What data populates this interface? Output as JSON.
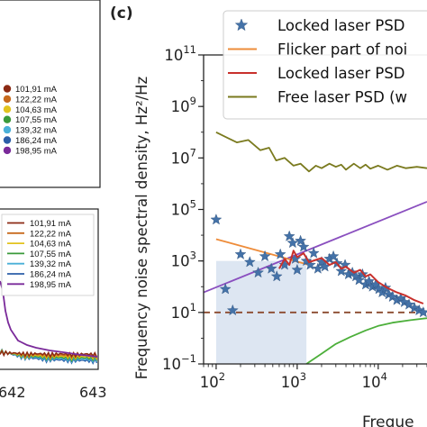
{
  "colors": {
    "locked_psd": "#4472a8",
    "flicker": "#ee8c3a",
    "locked_smooth": "#c8302c",
    "free": "#7a7a1e",
    "white_noise": "#8b4a2e",
    "trend": "#8a4fbf",
    "green": "#4caf3a",
    "shade": "#dde6f2"
  },
  "panel_label": "(c)",
  "left_panels": {
    "top_legend": [
      {
        "label": "101,91 mA",
        "color": "#8b2a14"
      },
      {
        "label": "122,22 mA",
        "color": "#c86a1e"
      },
      {
        "label": "104,63 mA",
        "color": "#e2c31e"
      },
      {
        "label": "107,55 mA",
        "color": "#3a9a3a"
      },
      {
        "label": "139,32 mA",
        "color": "#4ab0d8"
      },
      {
        "label": "186,24 mA",
        "color": "#2c5ea8"
      },
      {
        "label": "198,95 mA",
        "color": "#7a2a9a"
      }
    ],
    "bottom_legend": [
      {
        "label": "101,91 mA",
        "color": "#8b2a14"
      },
      {
        "label": "122,22 mA",
        "color": "#c86a1e"
      },
      {
        "label": "104,63 mA",
        "color": "#e2c31e"
      },
      {
        "label": "107,55 mA",
        "color": "#3a9a3a"
      },
      {
        "label": "139,32 mA",
        "color": "#4ab0d8"
      },
      {
        "label": "186,24 mA",
        "color": "#2c5ea8"
      },
      {
        "label": "198,95 mA",
        "color": "#7a2a9a"
      }
    ],
    "x_ticks": [
      "642",
      "643"
    ]
  },
  "chart_data": {
    "type": "line",
    "panel": "(c)",
    "xlabel": "Freque",
    "ylabel": "Frequency noise spectral density, Hz²/Hz",
    "x_scale": "log",
    "y_scale": "log",
    "xlim": [
      70,
      40000
    ],
    "ylim": [
      0.1,
      100000000000
    ],
    "x_ticks": [
      {
        "value": 100,
        "label": "10",
        "exp": "2"
      },
      {
        "value": 1000,
        "label": "10",
        "exp": "3"
      },
      {
        "value": 10000,
        "label": "10",
        "exp": "4"
      }
    ],
    "y_ticks": [
      {
        "value": 0.1,
        "label": "10",
        "exp": "−1"
      },
      {
        "value": 10,
        "label": "10",
        "exp": "1"
      },
      {
        "value": 1000,
        "label": "10",
        "exp": "3"
      },
      {
        "value": 100000,
        "label": "10",
        "exp": "5"
      },
      {
        "value": 10000000,
        "label": "10",
        "exp": "7"
      },
      {
        "value": 1000000000,
        "label": "10",
        "exp": "9"
      },
      {
        "value": 100000000000,
        "label": "10",
        "exp": "11"
      }
    ],
    "legend": [
      {
        "label": "Locked laser PSD",
        "kind": "star",
        "series": "locked_psd"
      },
      {
        "label": "Flicker part of noi",
        "kind": "line",
        "series": "flicker"
      },
      {
        "label": "Locked laser PSD",
        "kind": "line",
        "series": "locked_smooth"
      },
      {
        "label": "Free laser PSD (w",
        "kind": "line",
        "series": "free"
      }
    ],
    "shaded_region": {
      "x": [
        100,
        1300
      ],
      "y": [
        0.1,
        1000
      ]
    },
    "series": [
      {
        "id": "locked_psd",
        "kind": "scatter",
        "points": [
          [
            100,
            40000
          ],
          [
            130,
            80
          ],
          [
            160,
            12
          ],
          [
            200,
            1800
          ],
          [
            260,
            900
          ],
          [
            330,
            350
          ],
          [
            400,
            1500
          ],
          [
            480,
            500
          ],
          [
            560,
            250
          ],
          [
            620,
            1800
          ],
          [
            700,
            700
          ],
          [
            800,
            9000
          ],
          [
            880,
            5000
          ],
          [
            950,
            1200
          ],
          [
            1000,
            450
          ],
          [
            1100,
            6000
          ],
          [
            1200,
            3500
          ],
          [
            1300,
            1000
          ],
          [
            1450,
            700
          ],
          [
            1600,
            2000
          ],
          [
            1800,
            500
          ],
          [
            2000,
            900
          ],
          [
            2200,
            600
          ],
          [
            2500,
            1200
          ],
          [
            2800,
            1500
          ],
          [
            3100,
            800
          ],
          [
            3500,
            400
          ],
          [
            3900,
            700
          ],
          [
            4300,
            300
          ],
          [
            4800,
            350
          ],
          [
            5300,
            250
          ],
          [
            5800,
            180
          ],
          [
            6400,
            300
          ],
          [
            7000,
            120
          ],
          [
            7700,
            160
          ],
          [
            8500,
            100
          ],
          [
            9300,
            120
          ],
          [
            10200,
            80
          ],
          [
            11200,
            60
          ],
          [
            12300,
            90
          ],
          [
            13500,
            50
          ],
          [
            15000,
            40
          ],
          [
            17000,
            30
          ],
          [
            19000,
            35
          ],
          [
            21000,
            25
          ],
          [
            24000,
            20
          ],
          [
            28000,
            15
          ],
          [
            32000,
            12
          ],
          [
            36000,
            10
          ]
        ]
      },
      {
        "id": "flicker",
        "kind": "line",
        "points": [
          [
            100,
            7000
          ],
          [
            600,
            1500
          ],
          [
            1400,
            700
          ]
        ]
      },
      {
        "id": "locked_smooth",
        "kind": "line",
        "points": [
          [
            600,
            500
          ],
          [
            700,
            1200
          ],
          [
            800,
            700
          ],
          [
            900,
            2500
          ],
          [
            1000,
            1400
          ],
          [
            1200,
            2000
          ],
          [
            1400,
            900
          ],
          [
            1700,
            1100
          ],
          [
            2000,
            1300
          ],
          [
            2500,
            700
          ],
          [
            3000,
            900
          ],
          [
            3500,
            500
          ],
          [
            4000,
            600
          ],
          [
            5000,
            350
          ],
          [
            6000,
            450
          ],
          [
            7000,
            250
          ],
          [
            8000,
            300
          ],
          [
            10000,
            150
          ],
          [
            13000,
            90
          ],
          [
            17000,
            60
          ],
          [
            22000,
            45
          ],
          [
            28000,
            30
          ],
          [
            36000,
            22
          ]
        ]
      },
      {
        "id": "free",
        "kind": "line",
        "points": [
          [
            100,
            100000000
          ],
          [
            180,
            40000000
          ],
          [
            250,
            50000000
          ],
          [
            350,
            20000000
          ],
          [
            450,
            25000000
          ],
          [
            550,
            8000000
          ],
          [
            700,
            10000000
          ],
          [
            900,
            5000000
          ],
          [
            1100,
            6000000
          ],
          [
            1400,
            3000000
          ],
          [
            1700,
            5000000
          ],
          [
            2000,
            4000000
          ],
          [
            2500,
            6000000
          ],
          [
            3000,
            4500000
          ],
          [
            3500,
            5500000
          ],
          [
            4000,
            3500000
          ],
          [
            5000,
            6000000
          ],
          [
            6000,
            4000000
          ],
          [
            7000,
            5500000
          ],
          [
            8000,
            3800000
          ],
          [
            10000,
            5000000
          ],
          [
            13000,
            3500000
          ],
          [
            17000,
            5000000
          ],
          [
            22000,
            4000000
          ],
          [
            30000,
            4500000
          ],
          [
            40000,
            4000000
          ]
        ]
      },
      {
        "id": "white_noise",
        "kind": "dashed",
        "points": [
          [
            70,
            10
          ],
          [
            40000,
            10
          ]
        ]
      },
      {
        "id": "trend",
        "kind": "line",
        "points": [
          [
            70,
            60
          ],
          [
            40000,
            200000
          ]
        ]
      },
      {
        "id": "green",
        "kind": "line",
        "points": [
          [
            1300,
            0.1
          ],
          [
            2000,
            0.25
          ],
          [
            3000,
            0.6
          ],
          [
            4500,
            1.1
          ],
          [
            7000,
            2
          ],
          [
            10000,
            3
          ],
          [
            15000,
            4
          ],
          [
            25000,
            5
          ],
          [
            40000,
            6
          ]
        ]
      }
    ]
  }
}
